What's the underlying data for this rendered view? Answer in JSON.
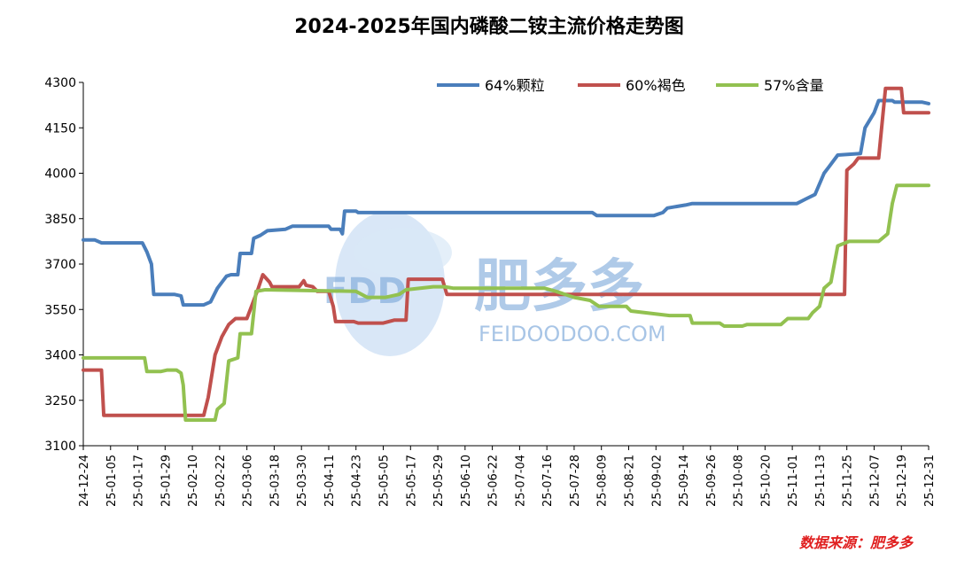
{
  "chart_data": {
    "type": "line",
    "title": "2024-2025年国内磷酸二铵主流价格走势图",
    "source_label": "数据来源：肥多多",
    "watermark": {
      "logo_text": "FDD",
      "brand": "肥多多",
      "url": "FEIDOODOO.COM"
    },
    "ylim": [
      3100,
      4300
    ],
    "yticks": [
      3100,
      3250,
      3400,
      3550,
      3700,
      3850,
      4000,
      4150,
      4300
    ],
    "x_range": [
      "2024-12-24",
      "2025-12-31"
    ],
    "x_tick_labels": [
      "24-12-24",
      "25-01-05",
      "25-01-17",
      "25-01-29",
      "25-02-10",
      "25-02-22",
      "25-03-06",
      "25-03-18",
      "25-03-30",
      "25-04-11",
      "25-04-23",
      "25-05-05",
      "25-05-17",
      "25-05-29",
      "25-06-10",
      "25-06-22",
      "25-07-04",
      "25-07-16",
      "25-07-28",
      "25-08-09",
      "25-08-21",
      "25-09-02",
      "25-09-14",
      "25-09-26",
      "25-10-08",
      "25-10-20",
      "25-11-01",
      "25-11-13",
      "25-11-25",
      "25-12-07",
      "25-12-19",
      "25-12-31"
    ],
    "legend_position": "top-right",
    "grid": false,
    "series": [
      {
        "name": "64%颗粒",
        "color": "#4a7ebb",
        "points": [
          [
            "2024-12-24",
            3780
          ],
          [
            "2024-12-29",
            3780
          ],
          [
            "2025-01-01",
            3770
          ],
          [
            "2025-01-19",
            3770
          ],
          [
            "2025-01-21",
            3740
          ],
          [
            "2025-01-23",
            3700
          ],
          [
            "2025-01-24",
            3600
          ],
          [
            "2025-02-02",
            3600
          ],
          [
            "2025-02-05",
            3595
          ],
          [
            "2025-02-06",
            3565
          ],
          [
            "2025-02-15",
            3565
          ],
          [
            "2025-02-18",
            3575
          ],
          [
            "2025-02-21",
            3620
          ],
          [
            "2025-02-25",
            3660
          ],
          [
            "2025-02-27",
            3665
          ],
          [
            "2025-03-02",
            3665
          ],
          [
            "2025-03-03",
            3735
          ],
          [
            "2025-03-08",
            3735
          ],
          [
            "2025-03-09",
            3785
          ],
          [
            "2025-03-12",
            3795
          ],
          [
            "2025-03-15",
            3810
          ],
          [
            "2025-03-23",
            3815
          ],
          [
            "2025-03-26",
            3825
          ],
          [
            "2025-04-11",
            3825
          ],
          [
            "2025-04-12",
            3815
          ],
          [
            "2025-04-16",
            3815
          ],
          [
            "2025-04-17",
            3800
          ],
          [
            "2025-04-18",
            3875
          ],
          [
            "2025-04-23",
            3875
          ],
          [
            "2025-04-24",
            3870
          ],
          [
            "2025-08-05",
            3870
          ],
          [
            "2025-08-07",
            3860
          ],
          [
            "2025-09-01",
            3860
          ],
          [
            "2025-09-05",
            3870
          ],
          [
            "2025-09-07",
            3885
          ],
          [
            "2025-09-15",
            3895
          ],
          [
            "2025-09-18",
            3900
          ],
          [
            "2025-11-03",
            3900
          ],
          [
            "2025-11-07",
            3915
          ],
          [
            "2025-11-11",
            3930
          ],
          [
            "2025-11-15",
            4000
          ],
          [
            "2025-11-17",
            4020
          ],
          [
            "2025-11-21",
            4060
          ],
          [
            "2025-12-01",
            4065
          ],
          [
            "2025-12-03",
            4150
          ],
          [
            "2025-12-07",
            4200
          ],
          [
            "2025-12-09",
            4240
          ],
          [
            "2025-12-15",
            4240
          ],
          [
            "2025-12-16",
            4235
          ],
          [
            "2025-12-28",
            4235
          ],
          [
            "2025-12-31",
            4230
          ]
        ]
      },
      {
        "name": "60%褐色",
        "color": "#c0504d",
        "points": [
          [
            "2024-12-24",
            3350
          ],
          [
            "2025-01-01",
            3350
          ],
          [
            "2025-01-02",
            3200
          ],
          [
            "2025-02-15",
            3200
          ],
          [
            "2025-02-17",
            3260
          ],
          [
            "2025-02-20",
            3400
          ],
          [
            "2025-02-23",
            3460
          ],
          [
            "2025-02-26",
            3500
          ],
          [
            "2025-03-01",
            3520
          ],
          [
            "2025-03-06",
            3520
          ],
          [
            "2025-03-08",
            3560
          ],
          [
            "2025-03-11",
            3620
          ],
          [
            "2025-03-13",
            3665
          ],
          [
            "2025-03-16",
            3640
          ],
          [
            "2025-03-17",
            3625
          ],
          [
            "2025-03-29",
            3625
          ],
          [
            "2025-03-31",
            3645
          ],
          [
            "2025-04-01",
            3630
          ],
          [
            "2025-04-04",
            3625
          ],
          [
            "2025-04-06",
            3610
          ],
          [
            "2025-04-11",
            3610
          ],
          [
            "2025-04-13",
            3560
          ],
          [
            "2025-04-14",
            3510
          ],
          [
            "2025-04-22",
            3510
          ],
          [
            "2025-04-24",
            3505
          ],
          [
            "2025-05-05",
            3505
          ],
          [
            "2025-05-10",
            3515
          ],
          [
            "2025-05-15",
            3515
          ],
          [
            "2025-05-16",
            3650
          ],
          [
            "2025-05-31",
            3650
          ],
          [
            "2025-06-02",
            3600
          ],
          [
            "2025-11-24",
            3600
          ],
          [
            "2025-11-25",
            4010
          ],
          [
            "2025-11-28",
            4030
          ],
          [
            "2025-11-30",
            4050
          ],
          [
            "2025-12-09",
            4050
          ],
          [
            "2025-12-12",
            4280
          ],
          [
            "2025-12-19",
            4280
          ],
          [
            "2025-12-20",
            4200
          ],
          [
            "2025-12-31",
            4200
          ]
        ]
      },
      {
        "name": "57%含量",
        "color": "#92c150",
        "points": [
          [
            "2024-12-24",
            3390
          ],
          [
            "2025-01-20",
            3390
          ],
          [
            "2025-01-21",
            3345
          ],
          [
            "2025-01-27",
            3345
          ],
          [
            "2025-01-30",
            3350
          ],
          [
            "2025-02-03",
            3350
          ],
          [
            "2025-02-05",
            3340
          ],
          [
            "2025-02-06",
            3300
          ],
          [
            "2025-02-07",
            3185
          ],
          [
            "2025-02-20",
            3185
          ],
          [
            "2025-02-21",
            3220
          ],
          [
            "2025-02-24",
            3240
          ],
          [
            "2025-02-26",
            3380
          ],
          [
            "2025-03-02",
            3390
          ],
          [
            "2025-03-03",
            3470
          ],
          [
            "2025-03-08",
            3470
          ],
          [
            "2025-03-10",
            3610
          ],
          [
            "2025-03-14",
            3615
          ],
          [
            "2025-04-23",
            3610
          ],
          [
            "2025-04-28",
            3590
          ],
          [
            "2025-05-06",
            3590
          ],
          [
            "2025-05-12",
            3600
          ],
          [
            "2025-05-15",
            3615
          ],
          [
            "2025-05-27",
            3625
          ],
          [
            "2025-06-01",
            3625
          ],
          [
            "2025-06-05",
            3620
          ],
          [
            "2025-07-15",
            3620
          ],
          [
            "2025-07-20",
            3610
          ],
          [
            "2025-07-28",
            3590
          ],
          [
            "2025-08-04",
            3580
          ],
          [
            "2025-08-08",
            3560
          ],
          [
            "2025-08-20",
            3560
          ],
          [
            "2025-08-22",
            3545
          ],
          [
            "2025-09-08",
            3530
          ],
          [
            "2025-09-17",
            3530
          ],
          [
            "2025-09-18",
            3505
          ],
          [
            "2025-09-30",
            3505
          ],
          [
            "2025-10-02",
            3495
          ],
          [
            "2025-10-10",
            3495
          ],
          [
            "2025-10-12",
            3500
          ],
          [
            "2025-10-27",
            3500
          ],
          [
            "2025-10-30",
            3520
          ],
          [
            "2025-11-08",
            3520
          ],
          [
            "2025-11-10",
            3540
          ],
          [
            "2025-11-13",
            3560
          ],
          [
            "2025-11-15",
            3620
          ],
          [
            "2025-11-18",
            3640
          ],
          [
            "2025-11-21",
            3760
          ],
          [
            "2025-11-26",
            3775
          ],
          [
            "2025-12-09",
            3775
          ],
          [
            "2025-12-13",
            3800
          ],
          [
            "2025-12-15",
            3900
          ],
          [
            "2025-12-17",
            3960
          ],
          [
            "2025-12-31",
            3960
          ]
        ]
      }
    ]
  }
}
